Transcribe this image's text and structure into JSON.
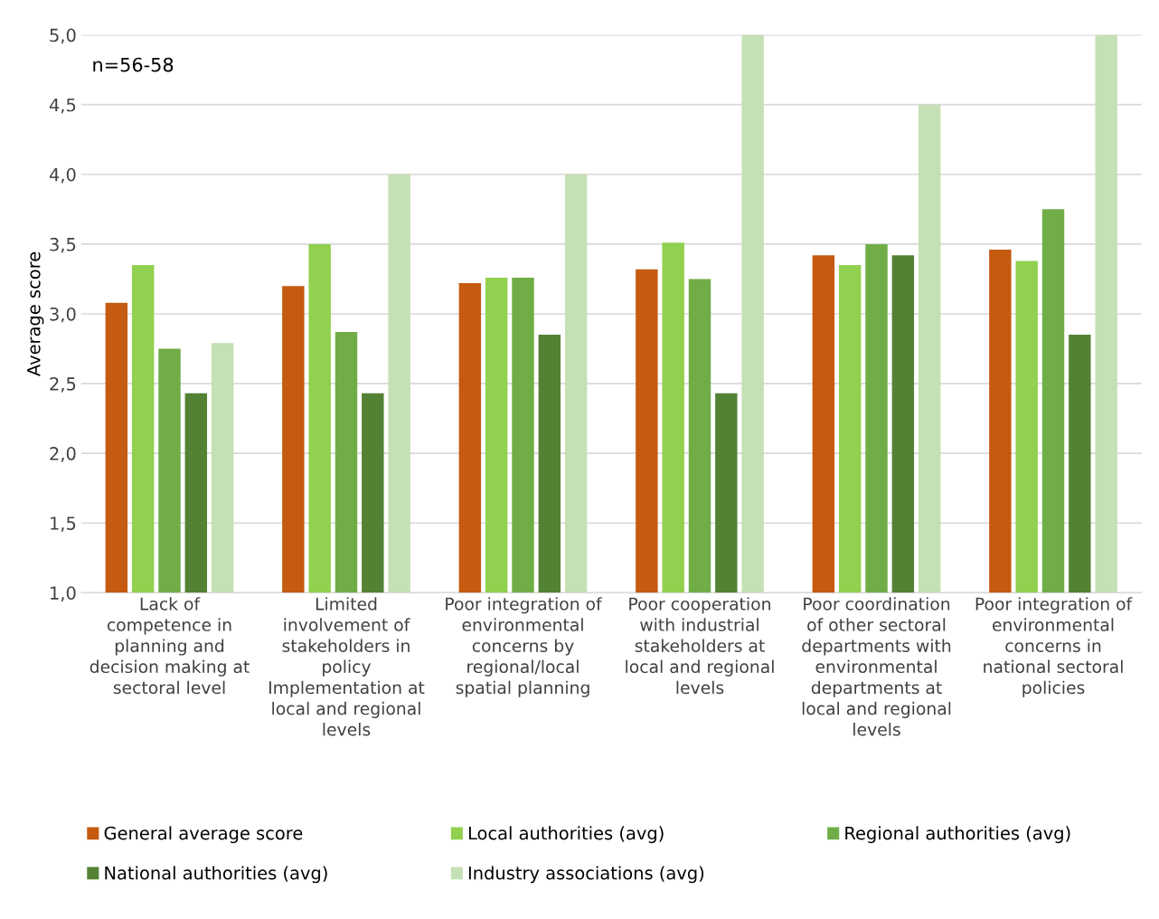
{
  "chart_data": {
    "type": "bar",
    "ylabel": "Average score",
    "categories": [
      "Lack of\ncompetence in\nplanning and\ndecision making at\nsectoral level",
      "Limited\ninvolvement of\nstakeholders in\npolicy\nImplementation at\nlocal and regional\nlevels",
      "Poor integration of\nenvironmental\nconcerns by\nregional/local\nspatial planning",
      "Poor cooperation\nwith industrial\nstakeholders at\nlocal and regional\nlevels",
      "Poor coordination\nof other sectoral\ndepartments with\nenvironmental\ndepartments at\nlocal and regional\nlevels",
      "Poor integration of\nenvironmental\nconcerns in\nnational sectoral\npolicies"
    ],
    "series": [
      {
        "name": "General average score",
        "color": "#c55a11",
        "values": [
          3.08,
          3.2,
          3.22,
          3.32,
          3.42,
          3.46
        ]
      },
      {
        "name": "Local authorities (avg)",
        "color": "#92d050",
        "values": [
          3.35,
          3.5,
          3.26,
          3.51,
          3.35,
          3.38
        ]
      },
      {
        "name": "Regional authorities (avg)",
        "color": "#70ad47",
        "values": [
          2.75,
          2.87,
          3.26,
          3.25,
          3.5,
          3.75
        ]
      },
      {
        "name": "National authorities (avg)",
        "color": "#548235",
        "values": [
          2.43,
          2.43,
          2.85,
          2.43,
          3.42,
          2.85
        ]
      },
      {
        "name": "Industry associations (avg)",
        "color": "#c5e0b4",
        "values": [
          2.79,
          4.0,
          4.0,
          5.0,
          4.5,
          5.0
        ]
      }
    ],
    "ylim": [
      1,
      5
    ],
    "yticks": [
      {
        "value": 1,
        "label": "1,0"
      },
      {
        "value": 1.5,
        "label": "1,5"
      },
      {
        "value": 2,
        "label": "2,0"
      },
      {
        "value": 2.5,
        "label": "2,5"
      },
      {
        "value": 3,
        "label": "3,0"
      },
      {
        "value": 3.5,
        "label": "3,5"
      },
      {
        "value": 4,
        "label": "4,0"
      },
      {
        "value": 4.5,
        "label": "4,5"
      },
      {
        "value": 5,
        "label": "5,0"
      }
    ],
    "grid": "y",
    "legend": "bottom",
    "annotations": [
      "n=56-58"
    ]
  }
}
